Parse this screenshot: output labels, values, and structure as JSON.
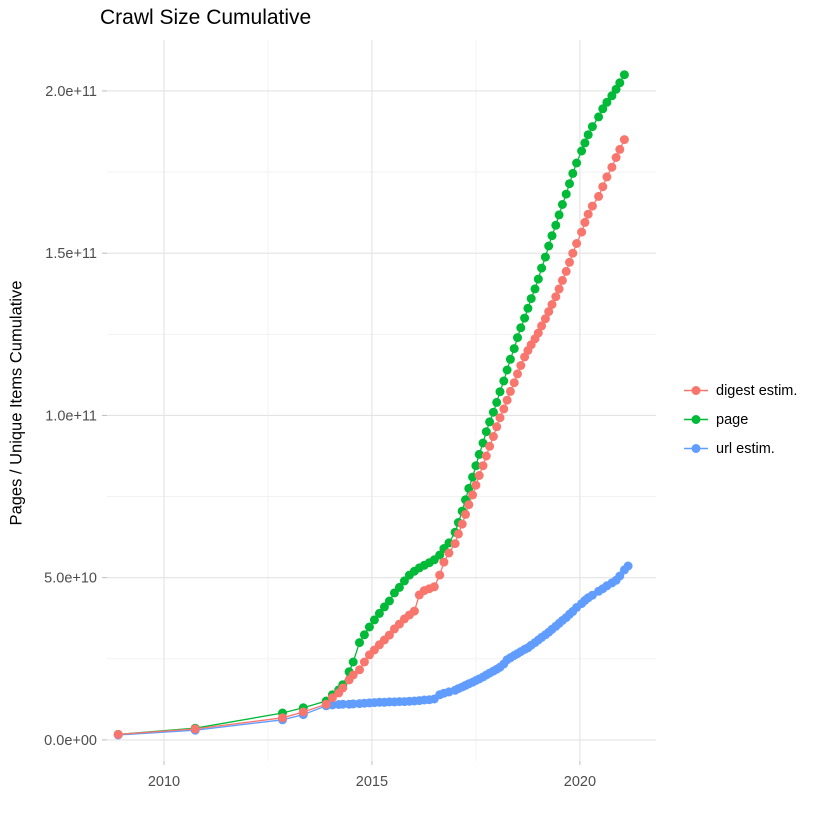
{
  "colors": {
    "background": "#FFFFFF",
    "grid_major": "#E3E3E3",
    "grid_minor": "#F1F1F1",
    "tick_mark": "#BDBDBD",
    "tick_text": "#4D4D4D",
    "title_text": "#000000"
  },
  "chart_data": {
    "type": "scatter",
    "title": "Crawl Size Cumulative",
    "xlabel": "",
    "ylabel": "Pages / Unique Items Cumulative",
    "grid": true,
    "legend_position": "right",
    "xlim": [
      2008.63,
      2021.83
    ],
    "ylim_billions": [
      -6.5,
      215.7
    ],
    "y_unit": "pages (value in billions, i.e. value × 1e9)",
    "x_ticks": {
      "values": [
        2010,
        2015,
        2020
      ],
      "labels": [
        "2010",
        "2015",
        "2020"
      ],
      "minor": [
        2012.5,
        2017.5
      ]
    },
    "y_ticks": {
      "values_billions": [
        0,
        50,
        100,
        150,
        200
      ],
      "labels": [
        "0.0e+00",
        "5.0e+10",
        "1.0e+11",
        "1.5e+11",
        "2.0e+11"
      ],
      "minor_billions": [
        25,
        75,
        125,
        175
      ]
    },
    "draw_order": [
      1,
      2,
      0
    ],
    "series": [
      {
        "name": "digest estim.",
        "color": "#F8766D",
        "points_year_billions": [
          [
            2008.9,
            1.7
          ],
          [
            2010.75,
            3.4
          ],
          [
            2012.85,
            6.8
          ],
          [
            2013.35,
            8.6
          ],
          [
            2013.9,
            11.0
          ],
          [
            2014.05,
            13.0
          ],
          [
            2014.2,
            14.5
          ],
          [
            2014.3,
            16.0
          ],
          [
            2014.45,
            18.5
          ],
          [
            2014.55,
            20.0
          ],
          [
            2014.7,
            21.6
          ],
          [
            2014.82,
            24.0
          ],
          [
            2014.94,
            26.2
          ],
          [
            2015.06,
            27.7
          ],
          [
            2015.18,
            29.3
          ],
          [
            2015.3,
            30.8
          ],
          [
            2015.42,
            32.3
          ],
          [
            2015.54,
            34.2
          ],
          [
            2015.66,
            35.7
          ],
          [
            2015.78,
            37.3
          ],
          [
            2015.9,
            38.5
          ],
          [
            2016.02,
            39.7
          ],
          [
            2016.14,
            44.7
          ],
          [
            2016.26,
            46.0
          ],
          [
            2016.38,
            46.6
          ],
          [
            2016.5,
            47.2
          ],
          [
            2016.63,
            50.8
          ],
          [
            2016.73,
            54.8
          ],
          [
            2016.85,
            57.6
          ],
          [
            2017.0,
            60.5
          ],
          [
            2017.08,
            63.5
          ],
          [
            2017.17,
            66.5
          ],
          [
            2017.25,
            69.5
          ],
          [
            2017.33,
            72.5
          ],
          [
            2017.42,
            75.5
          ],
          [
            2017.5,
            78.5
          ],
          [
            2017.58,
            81.5
          ],
          [
            2017.67,
            84.5
          ],
          [
            2017.75,
            87.5
          ],
          [
            2017.83,
            90.5
          ],
          [
            2017.92,
            93.5
          ],
          [
            2018.0,
            96.5
          ],
          [
            2018.08,
            99.3
          ],
          [
            2018.17,
            102.0
          ],
          [
            2018.25,
            104.7
          ],
          [
            2018.33,
            107.4
          ],
          [
            2018.42,
            110.1
          ],
          [
            2018.5,
            112.8
          ],
          [
            2018.58,
            115.4
          ],
          [
            2018.67,
            118.0
          ],
          [
            2018.75,
            120.0
          ],
          [
            2018.83,
            121.8
          ],
          [
            2018.92,
            123.6
          ],
          [
            2019.0,
            125.4
          ],
          [
            2019.08,
            127.6
          ],
          [
            2019.17,
            129.8
          ],
          [
            2019.25,
            132.0
          ],
          [
            2019.33,
            134.2
          ],
          [
            2019.42,
            136.6
          ],
          [
            2019.5,
            139.0
          ],
          [
            2019.58,
            141.6
          ],
          [
            2019.67,
            144.4
          ],
          [
            2019.75,
            147.2
          ],
          [
            2019.83,
            150.0
          ],
          [
            2019.92,
            153.0
          ],
          [
            2020.04,
            156.5
          ],
          [
            2020.12,
            159.5
          ],
          [
            2020.2,
            162.0
          ],
          [
            2020.3,
            164.5
          ],
          [
            2020.45,
            167.5
          ],
          [
            2020.55,
            170.5
          ],
          [
            2020.65,
            173.5
          ],
          [
            2020.77,
            176.5
          ],
          [
            2020.87,
            179.5
          ],
          [
            2020.96,
            182.0
          ],
          [
            2021.07,
            185.0
          ]
        ]
      },
      {
        "name": "page",
        "color": "#00BA38",
        "points_year_billions": [
          [
            2008.9,
            1.7
          ],
          [
            2010.75,
            3.6
          ],
          [
            2012.85,
            8.3
          ],
          [
            2013.35,
            9.9
          ],
          [
            2013.9,
            12.0
          ],
          [
            2014.05,
            13.9
          ],
          [
            2014.2,
            15.4
          ],
          [
            2014.3,
            17.0
          ],
          [
            2014.45,
            21.0
          ],
          [
            2014.55,
            24.0
          ],
          [
            2014.7,
            30.0
          ],
          [
            2014.82,
            32.4
          ],
          [
            2014.94,
            34.8
          ],
          [
            2015.06,
            37.0
          ],
          [
            2015.18,
            39.0
          ],
          [
            2015.3,
            41.0
          ],
          [
            2015.42,
            42.8
          ],
          [
            2015.54,
            45.3
          ],
          [
            2015.66,
            47.0
          ],
          [
            2015.78,
            49.0
          ],
          [
            2015.9,
            50.8
          ],
          [
            2016.02,
            52.0
          ],
          [
            2016.14,
            53.0
          ],
          [
            2016.26,
            53.8
          ],
          [
            2016.38,
            54.6
          ],
          [
            2016.5,
            55.5
          ],
          [
            2016.63,
            57.0
          ],
          [
            2016.73,
            59.0
          ],
          [
            2016.85,
            60.7
          ],
          [
            2017.0,
            64.0
          ],
          [
            2017.08,
            67.0
          ],
          [
            2017.17,
            70.5
          ],
          [
            2017.25,
            74.0
          ],
          [
            2017.33,
            77.5
          ],
          [
            2017.42,
            81.0
          ],
          [
            2017.5,
            84.5
          ],
          [
            2017.58,
            88.0
          ],
          [
            2017.67,
            91.5
          ],
          [
            2017.75,
            95.0
          ],
          [
            2017.83,
            98.0
          ],
          [
            2017.92,
            101.0
          ],
          [
            2018.0,
            104.0
          ],
          [
            2018.08,
            107.3
          ],
          [
            2018.17,
            110.6
          ],
          [
            2018.25,
            114.0
          ],
          [
            2018.33,
            117.3
          ],
          [
            2018.42,
            120.6
          ],
          [
            2018.5,
            124.0
          ],
          [
            2018.58,
            127.0
          ],
          [
            2018.67,
            130.0
          ],
          [
            2018.75,
            133.0
          ],
          [
            2018.83,
            136.0
          ],
          [
            2018.92,
            139.0
          ],
          [
            2019.0,
            142.0
          ],
          [
            2019.08,
            145.4
          ],
          [
            2019.17,
            148.8
          ],
          [
            2019.25,
            152.2
          ],
          [
            2019.33,
            155.4
          ],
          [
            2019.42,
            158.6
          ],
          [
            2019.5,
            161.8
          ],
          [
            2019.58,
            165.0
          ],
          [
            2019.67,
            168.2
          ],
          [
            2019.75,
            171.4
          ],
          [
            2019.83,
            174.6
          ],
          [
            2019.92,
            177.8
          ],
          [
            2020.04,
            181.5
          ],
          [
            2020.12,
            184.0
          ],
          [
            2020.2,
            186.5
          ],
          [
            2020.3,
            189.0
          ],
          [
            2020.45,
            192.0
          ],
          [
            2020.55,
            194.5
          ],
          [
            2020.65,
            196.5
          ],
          [
            2020.77,
            198.5
          ],
          [
            2020.87,
            200.5
          ],
          [
            2020.96,
            202.5
          ],
          [
            2021.07,
            205.0
          ]
        ]
      },
      {
        "name": "url estim.",
        "color": "#619CFF",
        "points_year_billions": [
          [
            2008.9,
            1.5
          ],
          [
            2010.75,
            3.0
          ],
          [
            2012.85,
            6.2
          ],
          [
            2013.35,
            7.8
          ],
          [
            2013.9,
            10.5
          ],
          [
            2014.05,
            10.8
          ],
          [
            2014.2,
            10.9
          ],
          [
            2014.3,
            11.0
          ],
          [
            2014.45,
            11.0
          ],
          [
            2014.55,
            11.1
          ],
          [
            2014.7,
            11.2
          ],
          [
            2014.82,
            11.3
          ],
          [
            2014.94,
            11.4
          ],
          [
            2015.06,
            11.5
          ],
          [
            2015.18,
            11.6
          ],
          [
            2015.3,
            11.6
          ],
          [
            2015.42,
            11.7
          ],
          [
            2015.54,
            11.7
          ],
          [
            2015.66,
            11.8
          ],
          [
            2015.78,
            11.8
          ],
          [
            2015.9,
            11.9
          ],
          [
            2016.02,
            12.0
          ],
          [
            2016.14,
            12.1
          ],
          [
            2016.26,
            12.3
          ],
          [
            2016.38,
            12.4
          ],
          [
            2016.5,
            12.6
          ],
          [
            2016.63,
            13.9
          ],
          [
            2016.73,
            14.4
          ],
          [
            2016.85,
            14.8
          ],
          [
            2017.0,
            15.3
          ],
          [
            2017.08,
            15.8
          ],
          [
            2017.17,
            16.3
          ],
          [
            2017.25,
            16.8
          ],
          [
            2017.33,
            17.3
          ],
          [
            2017.42,
            17.8
          ],
          [
            2017.5,
            18.3
          ],
          [
            2017.58,
            18.8
          ],
          [
            2017.67,
            19.4
          ],
          [
            2017.75,
            20.0
          ],
          [
            2017.83,
            20.6
          ],
          [
            2017.92,
            21.2
          ],
          [
            2018.0,
            21.8
          ],
          [
            2018.08,
            22.4
          ],
          [
            2018.17,
            23.4
          ],
          [
            2018.25,
            24.7
          ],
          [
            2018.33,
            25.3
          ],
          [
            2018.42,
            26.0
          ],
          [
            2018.5,
            26.6
          ],
          [
            2018.58,
            27.2
          ],
          [
            2018.67,
            27.9
          ],
          [
            2018.75,
            28.4
          ],
          [
            2018.83,
            29.2
          ],
          [
            2018.92,
            30.0
          ],
          [
            2019.0,
            30.8
          ],
          [
            2019.08,
            31.6
          ],
          [
            2019.17,
            32.4
          ],
          [
            2019.25,
            33.2
          ],
          [
            2019.33,
            34.1
          ],
          [
            2019.42,
            35.0
          ],
          [
            2019.5,
            35.9
          ],
          [
            2019.58,
            36.8
          ],
          [
            2019.67,
            37.7
          ],
          [
            2019.75,
            38.7
          ],
          [
            2019.83,
            39.6
          ],
          [
            2019.92,
            40.8
          ],
          [
            2020.04,
            42.0
          ],
          [
            2020.12,
            43.0
          ],
          [
            2020.2,
            43.8
          ],
          [
            2020.3,
            44.6
          ],
          [
            2020.45,
            45.8
          ],
          [
            2020.55,
            46.6
          ],
          [
            2020.65,
            47.5
          ],
          [
            2020.77,
            48.4
          ],
          [
            2020.87,
            49.2
          ],
          [
            2020.96,
            50.5
          ],
          [
            2021.07,
            52.4
          ],
          [
            2021.16,
            53.6
          ]
        ]
      }
    ]
  }
}
